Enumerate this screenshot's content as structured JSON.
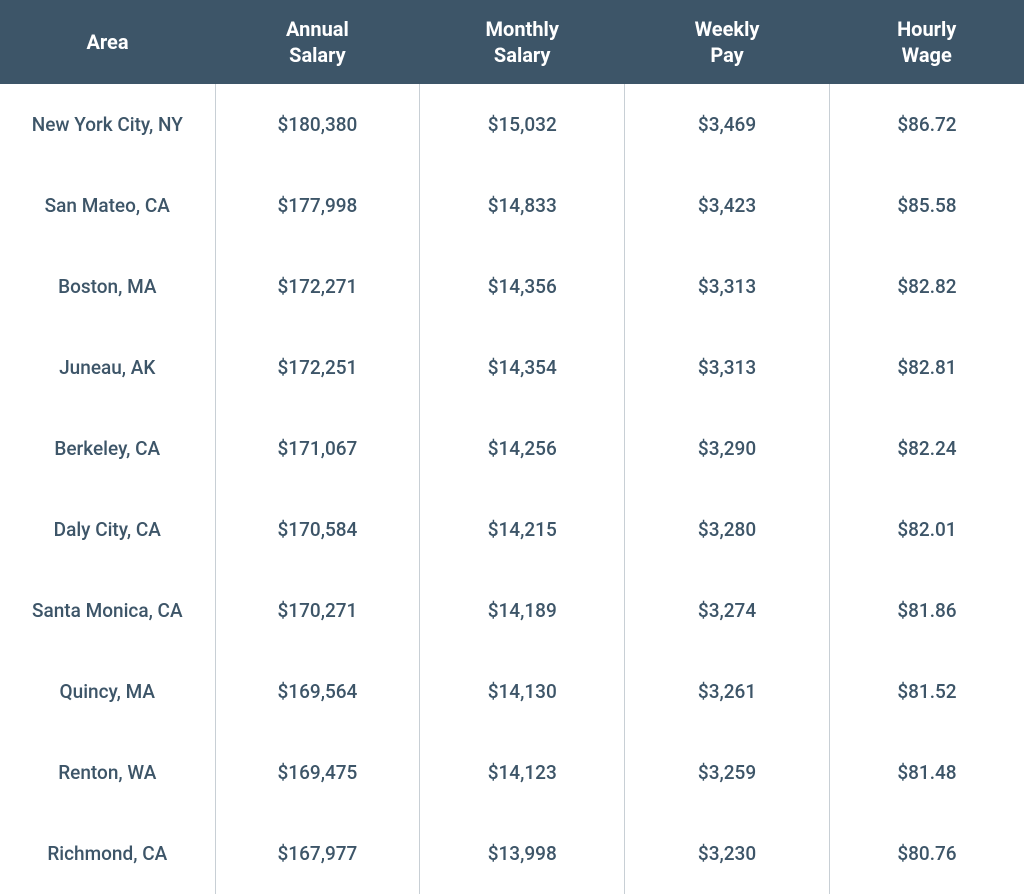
{
  "table": {
    "header_bg_color": "#3d5568",
    "header_text_color": "#ffffff",
    "body_text_color": "#3d5568",
    "border_color": "#c8cfd5",
    "columns": [
      {
        "line1": "Area",
        "line2": ""
      },
      {
        "line1": "Annual",
        "line2": "Salary"
      },
      {
        "line1": "Monthly",
        "line2": "Salary"
      },
      {
        "line1": "Weekly",
        "line2": "Pay"
      },
      {
        "line1": "Hourly",
        "line2": "Wage"
      }
    ],
    "rows": [
      {
        "area": "New York City, NY",
        "annual": "$180,380",
        "monthly": "$15,032",
        "weekly": "$3,469",
        "hourly": "$86.72"
      },
      {
        "area": "San Mateo, CA",
        "annual": "$177,998",
        "monthly": "$14,833",
        "weekly": "$3,423",
        "hourly": "$85.58"
      },
      {
        "area": "Boston, MA",
        "annual": "$172,271",
        "monthly": "$14,356",
        "weekly": "$3,313",
        "hourly": "$82.82"
      },
      {
        "area": "Juneau, AK",
        "annual": "$172,251",
        "monthly": "$14,354",
        "weekly": "$3,313",
        "hourly": "$82.81"
      },
      {
        "area": "Berkeley, CA",
        "annual": "$171,067",
        "monthly": "$14,256",
        "weekly": "$3,290",
        "hourly": "$82.24"
      },
      {
        "area": "Daly City, CA",
        "annual": "$170,584",
        "monthly": "$14,215",
        "weekly": "$3,280",
        "hourly": "$82.01"
      },
      {
        "area": "Santa Monica, CA",
        "annual": "$170,271",
        "monthly": "$14,189",
        "weekly": "$3,274",
        "hourly": "$81.86"
      },
      {
        "area": "Quincy, MA",
        "annual": "$169,564",
        "monthly": "$14,130",
        "weekly": "$3,261",
        "hourly": "$81.52"
      },
      {
        "area": "Renton, WA",
        "annual": "$169,475",
        "monthly": "$14,123",
        "weekly": "$3,259",
        "hourly": "$81.48"
      },
      {
        "area": "Richmond, CA",
        "annual": "$167,977",
        "monthly": "$13,998",
        "weekly": "$3,230",
        "hourly": "$80.76"
      }
    ]
  }
}
